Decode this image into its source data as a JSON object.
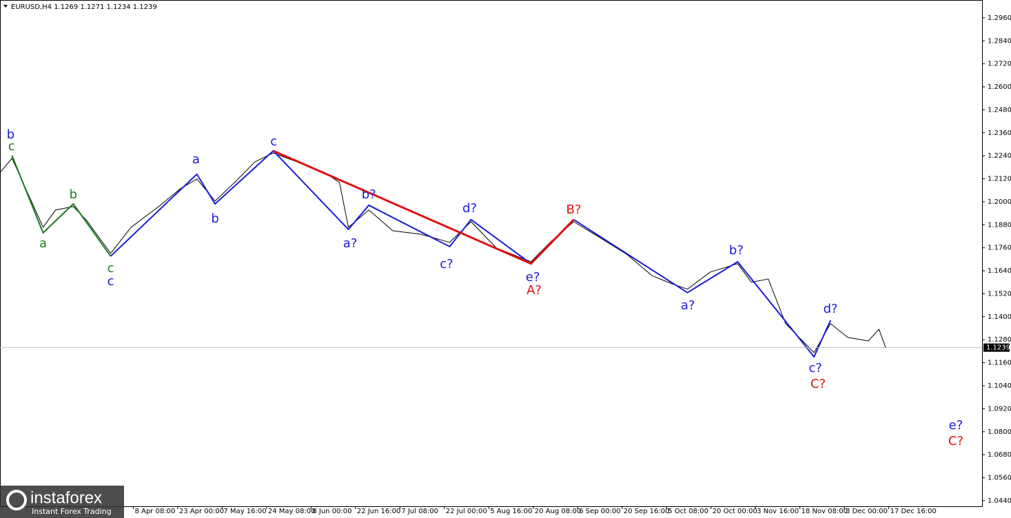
{
  "chart_data": {
    "type": "line",
    "title": "EURUSD,H4  1.1269 1.1271 1.1234 1.1239",
    "xlim": [
      -3,
      19.1
    ],
    "xticks": [
      {
        "value": 0,
        "label": "8 Apr 08:00"
      },
      {
        "value": 1,
        "label": "23 Apr 00:00"
      },
      {
        "value": 2,
        "label": "7 May 16:00"
      },
      {
        "value": 3,
        "label": "24 May 08:00"
      },
      {
        "value": 4,
        "label": "8 Jun 00:00"
      },
      {
        "value": 5,
        "label": "22 Jun 16:00"
      },
      {
        "value": 6,
        "label": "7 Jul 08:00"
      },
      {
        "value": 7,
        "label": "22 Jul 00:00"
      },
      {
        "value": 8,
        "label": "5 Aug 16:00"
      },
      {
        "value": 9,
        "label": "20 Aug 08:00"
      },
      {
        "value": 10,
        "label": "6 Sep 00:00"
      },
      {
        "value": 11,
        "label": "20 Sep 16:00"
      },
      {
        "value": 12,
        "label": "5 Oct 08:00"
      },
      {
        "value": 13,
        "label": "20 Oct 00:00"
      },
      {
        "value": 14,
        "label": "3 Nov 16:00"
      },
      {
        "value": 15,
        "label": "18 Nov 08:00"
      },
      {
        "value": 16,
        "label": "3 Dec 00:00"
      },
      {
        "value": 17,
        "label": "17 Dec 16:00"
      }
    ],
    "ylim": [
      1.0411,
      1.3053
    ],
    "yticks": [
      {
        "value": 1.296,
        "label": "1.2960"
      },
      {
        "value": 1.284,
        "label": "1.2840"
      },
      {
        "value": 1.272,
        "label": "1.2720"
      },
      {
        "value": 1.26,
        "label": "1.2600"
      },
      {
        "value": 1.248,
        "label": "1.2480"
      },
      {
        "value": 1.236,
        "label": "1.2360"
      },
      {
        "value": 1.224,
        "label": "1.2240"
      },
      {
        "value": 1.212,
        "label": "1.2120"
      },
      {
        "value": 1.2,
        "label": "1.2000"
      },
      {
        "value": 1.188,
        "label": "1.1880"
      },
      {
        "value": 1.176,
        "label": "1.1760"
      },
      {
        "value": 1.164,
        "label": "1.1640"
      },
      {
        "value": 1.152,
        "label": "1.1520"
      },
      {
        "value": 1.14,
        "label": "1.1400"
      },
      {
        "value": 1.128,
        "label": "1.1280"
      },
      {
        "value": 1.116,
        "label": "1.1160"
      },
      {
        "value": 1.104,
        "label": "1.1040"
      },
      {
        "value": 1.092,
        "label": "1.0920"
      },
      {
        "value": 1.08,
        "label": "1.0800"
      },
      {
        "value": 1.068,
        "label": "1.0680"
      },
      {
        "value": 1.056,
        "label": "1.0560"
      },
      {
        "value": 1.044,
        "label": "1.0440"
      }
    ],
    "last_price": 1.1239,
    "series": [
      {
        "color": "#000000",
        "width": 1,
        "x": [
          -2.99,
          -2.73,
          -2.45,
          -2.03,
          -1.75,
          -1.35,
          -1.05,
          -0.51,
          -0.05,
          0.57,
          1.04,
          1.43,
          1.84,
          2.28,
          2.74,
          3.15,
          3.67,
          4.29,
          4.64,
          4.84,
          5.3,
          5.84,
          6.47,
          7.12,
          7.6,
          8.17,
          8.95,
          9.41,
          9.91,
          10.5,
          11.12,
          11.67,
          12.12,
          12.47,
          12.98,
          13.6,
          13.91,
          14.29,
          14.68,
          15.32,
          15.69,
          16.08,
          16.54,
          16.78,
          16.93
        ],
        "values": [
          1.2155,
          1.2227,
          1.2083,
          1.1867,
          1.1957,
          1.1975,
          1.1903,
          1.1731,
          1.1867,
          1.1975,
          1.2065,
          1.2119,
          1.2004,
          1.2101,
          1.2209,
          1.2255,
          1.2209,
          1.2155,
          1.2101,
          1.1867,
          1.1957,
          1.1849,
          1.1831,
          1.1788,
          1.1896,
          1.1759,
          1.1687,
          1.1795,
          1.1896,
          1.1813,
          1.1723,
          1.1615,
          1.1572,
          1.1544,
          1.1633,
          1.1677,
          1.158,
          1.1597,
          1.1364,
          1.1213,
          1.1364,
          1.1292,
          1.1274,
          1.1335,
          1.1239
        ]
      },
      {
        "color": "#1e7a1e",
        "width": 2,
        "x": [
          -2.73,
          -2.03,
          -1.35,
          -0.51
        ],
        "values": [
          1.2241,
          1.1838,
          1.1989,
          1.1716
        ]
      },
      {
        "color": "#1a1adb",
        "width": 2,
        "x": [
          -0.51,
          1.43,
          1.84,
          3.15,
          4.84,
          5.3,
          7.12,
          7.6,
          8.95
        ],
        "values": [
          1.1716,
          1.2144,
          1.1989,
          1.2266,
          1.1856,
          1.1982,
          1.1766,
          1.1907,
          1.1677
        ]
      },
      {
        "color": "#1a1adb",
        "width": 2,
        "x": [
          9.91,
          12.47,
          13.6,
          15.32,
          15.69
        ],
        "values": [
          1.1907,
          1.1526,
          1.1687,
          1.1191,
          1.1382
        ]
      },
      {
        "color": "#e01010",
        "width": 3,
        "x": [
          3.15,
          8.95,
          9.91
        ],
        "values": [
          1.2266,
          1.1677,
          1.1907
        ]
      }
    ],
    "annotations": [
      {
        "text": "b",
        "color": "#1a1adb",
        "x": -2.76,
        "y": 1.2349
      },
      {
        "text": "c",
        "color": "#1e7a1e",
        "x": -2.74,
        "y": 1.2288
      },
      {
        "text": "a",
        "color": "#1e7a1e",
        "x": -2.03,
        "y": 1.1781
      },
      {
        "text": "b",
        "color": "#1e7a1e",
        "x": -1.35,
        "y": 1.2036
      },
      {
        "text": "c",
        "color": "#1e7a1e",
        "x": -0.51,
        "y": 1.1651
      },
      {
        "text": "c",
        "color": "#1a1adb",
        "x": -0.51,
        "y": 1.1583
      },
      {
        "text": "a",
        "color": "#1a1adb",
        "x": 1.41,
        "y": 1.2219
      },
      {
        "text": "b",
        "color": "#1a1adb",
        "x": 1.84,
        "y": 1.191
      },
      {
        "text": "c",
        "color": "#1a1adb",
        "x": 3.16,
        "y": 1.2313
      },
      {
        "text": "b?",
        "color": "#1a1adb",
        "x": 5.3,
        "y": 1.2036
      },
      {
        "text": "a?",
        "color": "#1a1adb",
        "x": 4.88,
        "y": 1.1781
      },
      {
        "text": "c?",
        "color": "#1a1adb",
        "x": 7.05,
        "y": 1.1673
      },
      {
        "text": "d?",
        "color": "#1a1adb",
        "x": 7.57,
        "y": 1.1964
      },
      {
        "text": "e?",
        "color": "#1a1adb",
        "x": 8.99,
        "y": 1.1605
      },
      {
        "text": "A?",
        "color": "#e01010",
        "x": 9.02,
        "y": 1.1536
      },
      {
        "text": "B?",
        "color": "#e01010",
        "x": 9.91,
        "y": 1.1957
      },
      {
        "text": "a?",
        "color": "#1a1adb",
        "x": 12.48,
        "y": 1.1457
      },
      {
        "text": "b?",
        "color": "#1a1adb",
        "x": 13.57,
        "y": 1.1745
      },
      {
        "text": "c?",
        "color": "#1a1adb",
        "x": 15.35,
        "y": 1.113
      },
      {
        "text": "C?",
        "color": "#e01010",
        "x": 15.41,
        "y": 1.1047
      },
      {
        "text": "d?",
        "color": "#1a1adb",
        "x": 15.69,
        "y": 1.1439
      },
      {
        "text": "e?",
        "color": "#1a1adb",
        "x": 18.51,
        "y": 1.0832
      },
      {
        "text": "C?",
        "color": "#e01010",
        "x": 18.51,
        "y": 1.0749
      }
    ]
  },
  "watermark": {
    "name": "instaforex",
    "tagline": "Instant Forex Trading"
  }
}
